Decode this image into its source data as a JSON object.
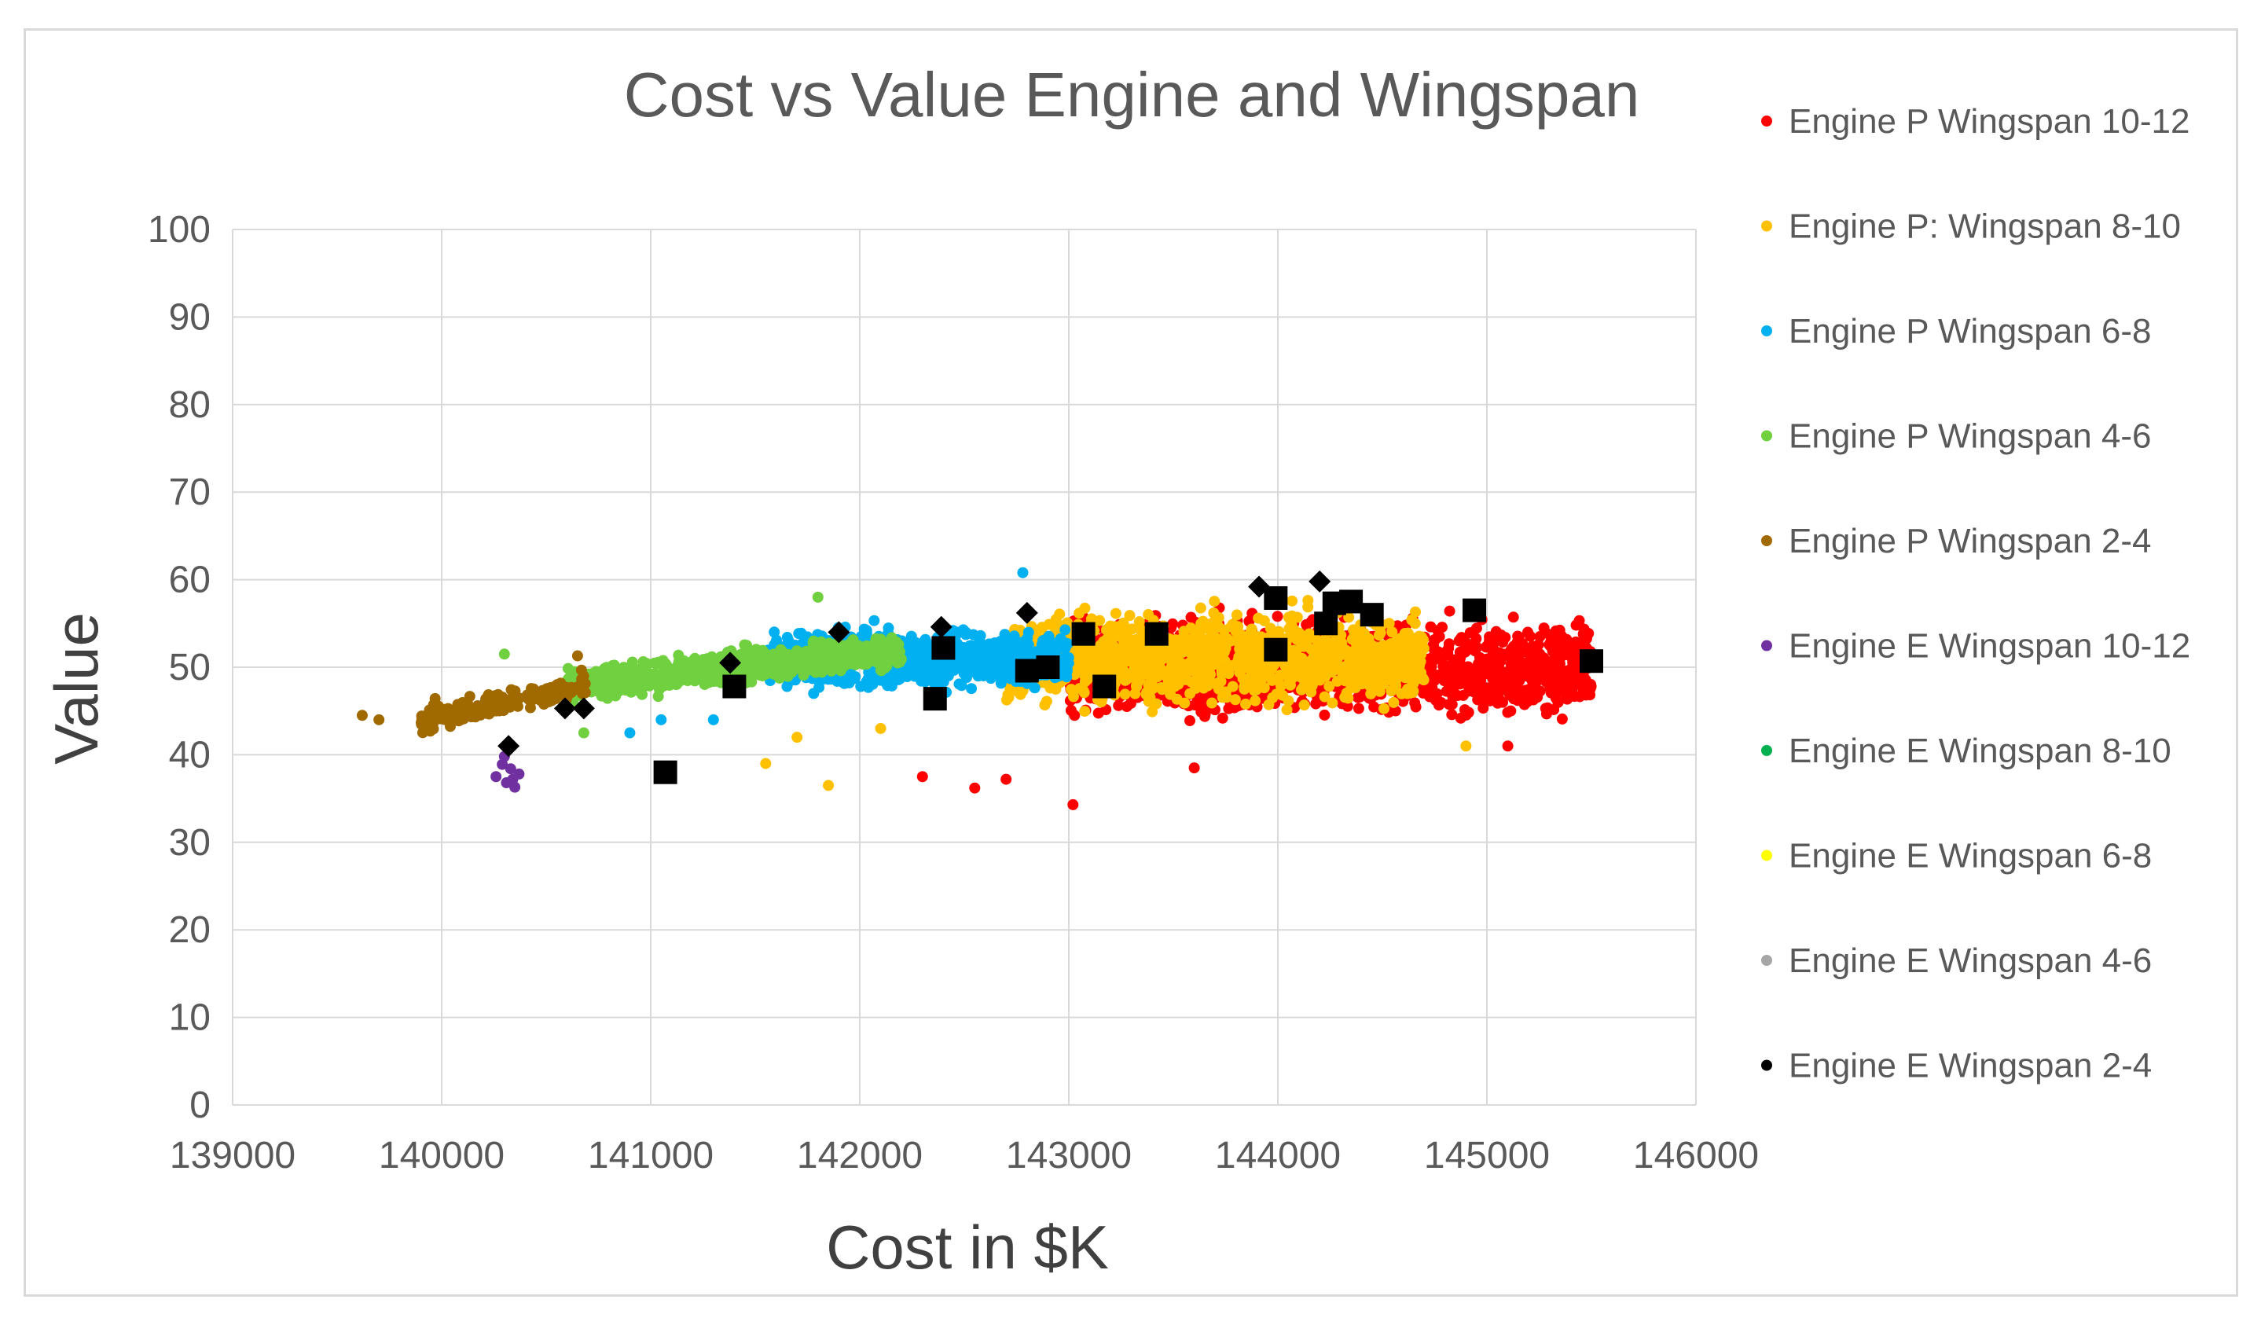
{
  "chart_data": {
    "type": "scatter",
    "title": "Cost vs Value Engine and Wingspan",
    "xlabel": "Cost in $K",
    "ylabel": "Value",
    "xlim": [
      139000,
      146000
    ],
    "ylim": [
      0,
      100
    ],
    "xticks": [
      "139000",
      "140000",
      "141000",
      "142000",
      "143000",
      "144000",
      "145000",
      "146000"
    ],
    "yticks": [
      "0",
      "10",
      "20",
      "30",
      "40",
      "50",
      "60",
      "70",
      "80",
      "90",
      "100"
    ],
    "grid": true,
    "legend_position": "right",
    "series": [
      {
        "name": "Engine P Wingspan 10-12",
        "color": "#ff0000",
        "marker": "dot",
        "spread": {
          "x_range": [
            143000,
            145500
          ],
          "y_center": 50,
          "y_spread": 8
        },
        "outliers": [
          [
            143020,
            34.3
          ],
          [
            142550,
            36.2
          ],
          [
            142300,
            37.5
          ],
          [
            142700,
            37.2
          ],
          [
            143600,
            38.5
          ],
          [
            145100,
            41
          ]
        ]
      },
      {
        "name": "Engine P: Wingspan 8-10",
        "color": "#ffc000",
        "marker": "dot",
        "spread": {
          "x_range": [
            142700,
            144700
          ],
          "y_center": 51,
          "y_spread": 8
        },
        "outliers": [
          [
            141550,
            39
          ],
          [
            141850,
            36.5
          ],
          [
            141700,
            42
          ],
          [
            142100,
            43
          ],
          [
            144900,
            41
          ]
        ]
      },
      {
        "name": "Engine P Wingspan 6-8",
        "color": "#00b0f0",
        "marker": "dot",
        "spread": {
          "x_range": [
            141550,
            143000
          ],
          "y_center": 51,
          "y_spread": 5
        },
        "outliers": [
          [
            142780,
            60.8
          ],
          [
            140900,
            42.5
          ],
          [
            141050,
            44
          ],
          [
            141300,
            44
          ]
        ]
      },
      {
        "name": "Engine P Wingspan 4-6",
        "color": "#70d040",
        "marker": "dot",
        "spread": {
          "x_range": [
            140600,
            142200
          ],
          "y_center": 50,
          "y_spread": 5
        },
        "outliers": [
          [
            140300,
            51.5
          ],
          [
            141800,
            58
          ],
          [
            140680,
            42.5
          ]
        ]
      },
      {
        "name": "Engine P Wingspan 2-4",
        "color": "#a06a00",
        "marker": "dot",
        "spread": {
          "x_range": [
            139900,
            140700
          ],
          "y_center": 46,
          "y_spread": 4
        },
        "outliers": [
          [
            139620,
            44.5
          ],
          [
            139700,
            44
          ],
          [
            140650,
            51.3
          ]
        ]
      },
      {
        "name": "Engine E Wingspan 10-12",
        "color": "#7030a0",
        "marker": "dot",
        "points": [
          [
            140260,
            37.5
          ],
          [
            140300,
            39.8
          ],
          [
            140310,
            36.8
          ],
          [
            140330,
            38.4
          ],
          [
            140350,
            36.3
          ],
          [
            140370,
            37.8
          ],
          [
            140290,
            38.9
          ],
          [
            140340,
            37.2
          ]
        ]
      },
      {
        "name": "Engine E Wingspan 8-10",
        "color": "#00b050",
        "marker": "dot",
        "points": []
      },
      {
        "name": "Engine E Wingspan 6-8",
        "color": "#ffff00",
        "marker": "dot",
        "points": []
      },
      {
        "name": "Engine E Wingspan 4-6",
        "color": "#a6a6a6",
        "marker": "dot",
        "points": []
      },
      {
        "name": "Engine E Wingspan 2-4",
        "color": "#000000",
        "marker": "dot",
        "points": []
      }
    ],
    "black_squares": [
      [
        141070,
        38
      ],
      [
        141400,
        47.8
      ],
      [
        142360,
        46.4
      ],
      [
        142400,
        52.2
      ],
      [
        142800,
        49.6
      ],
      [
        142900,
        50
      ],
      [
        143070,
        53.8
      ],
      [
        143170,
        47.8
      ],
      [
        143420,
        53.8
      ],
      [
        143990,
        52
      ],
      [
        143990,
        57.9
      ],
      [
        144230,
        55
      ],
      [
        144270,
        57.3
      ],
      [
        144350,
        57.5
      ],
      [
        144450,
        56
      ],
      [
        144940,
        56.5
      ],
      [
        145500,
        50.7
      ]
    ],
    "black_diamonds": [
      [
        140320,
        41
      ],
      [
        140590,
        45.3
      ],
      [
        140680,
        45.3
      ],
      [
        141380,
        50.5
      ],
      [
        141900,
        54
      ],
      [
        142390,
        54.6
      ],
      [
        142800,
        56.2
      ],
      [
        143910,
        59.2
      ],
      [
        144200,
        59.8
      ]
    ]
  }
}
